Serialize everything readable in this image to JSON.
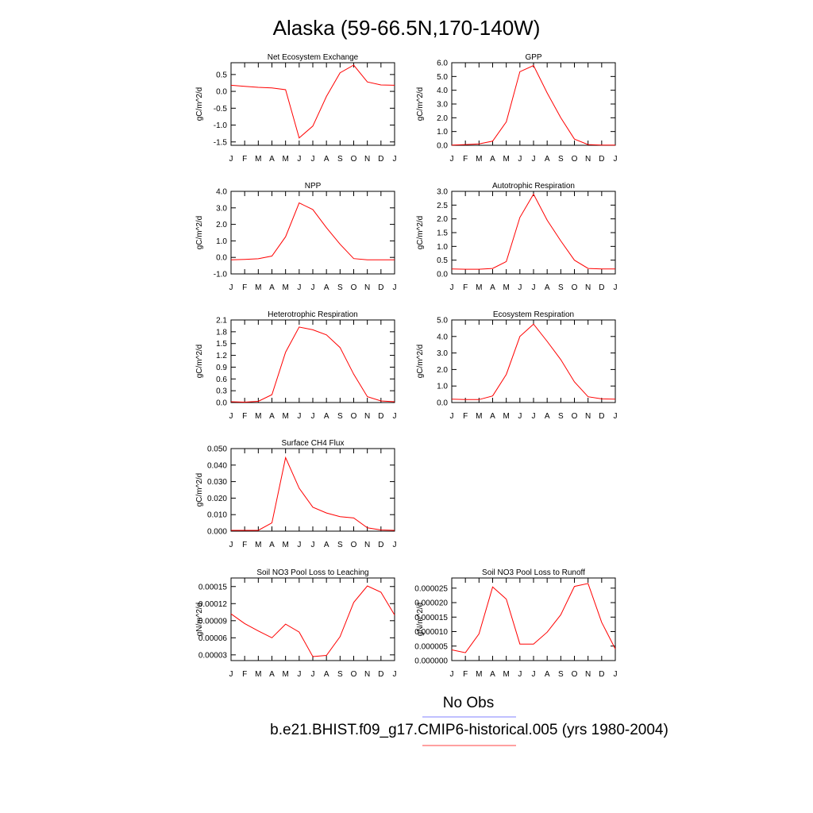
{
  "figure": {
    "title": "Alaska (59-66.5N,170-140W)",
    "legend": [
      {
        "label": "No Obs",
        "color": "#8080ff"
      },
      {
        "label": "b.e21.BHIST.f09_g17.CMIP6-historical.005 (yrs 1980-2004)",
        "color": "#ff4040"
      }
    ]
  },
  "chart_data": [
    {
      "type": "line",
      "title": "Net Ecosystem Exchange",
      "ylabel": "gC/m^2/d",
      "categories": [
        "J",
        "F",
        "M",
        "A",
        "M",
        "J",
        "J",
        "A",
        "S",
        "O",
        "N",
        "D",
        "J"
      ],
      "ylim": [
        -1.6,
        0.85
      ],
      "yticks": [
        -1.5,
        -1.0,
        -0.5,
        0.0,
        0.5
      ],
      "ytick_labels": [
        "-1.5",
        "-1.0",
        "-0.5",
        "0.0",
        "0.5"
      ],
      "series": [
        {
          "color": "#ff0000",
          "values": [
            0.18,
            0.15,
            0.12,
            0.1,
            0.05,
            -1.38,
            -1.03,
            -0.15,
            0.55,
            0.78,
            0.28,
            0.19,
            0.18
          ]
        }
      ]
    },
    {
      "type": "line",
      "title": "GPP",
      "ylabel": "gC/m^2/d",
      "categories": [
        "J",
        "F",
        "M",
        "A",
        "M",
        "J",
        "J",
        "A",
        "S",
        "O",
        "N",
        "D",
        "J"
      ],
      "ylim": [
        0,
        6.0
      ],
      "yticks": [
        0,
        1,
        2,
        3,
        4,
        5,
        6
      ],
      "ytick_labels": [
        "0.0",
        "1.0",
        "2.0",
        "3.0",
        "4.0",
        "5.0",
        "6.0"
      ],
      "series": [
        {
          "color": "#ff0000",
          "values": [
            0.02,
            0.05,
            0.1,
            0.3,
            1.7,
            5.35,
            5.8,
            3.8,
            2.0,
            0.45,
            0.05,
            0.02,
            0.02
          ]
        }
      ]
    },
    {
      "type": "line",
      "title": "NPP",
      "ylabel": "gC/m^2/d",
      "categories": [
        "J",
        "F",
        "M",
        "A",
        "M",
        "J",
        "J",
        "A",
        "S",
        "O",
        "N",
        "D",
        "J"
      ],
      "ylim": [
        -1.0,
        4.0
      ],
      "yticks": [
        -1,
        0,
        1,
        2,
        3,
        4
      ],
      "ytick_labels": [
        "-1.0",
        "0.0",
        "1.0",
        "2.0",
        "3.0",
        "4.0"
      ],
      "series": [
        {
          "color": "#ff0000",
          "values": [
            -0.15,
            -0.12,
            -0.08,
            0.08,
            1.25,
            3.3,
            2.9,
            1.8,
            0.8,
            -0.07,
            -0.15,
            -0.15,
            -0.15
          ]
        }
      ]
    },
    {
      "type": "line",
      "title": "Autotrophic Respiration",
      "ylabel": "gC/m^2/d",
      "categories": [
        "J",
        "F",
        "M",
        "A",
        "M",
        "J",
        "J",
        "A",
        "S",
        "O",
        "N",
        "D",
        "J"
      ],
      "ylim": [
        0,
        3.0
      ],
      "yticks": [
        0,
        0.5,
        1,
        1.5,
        2,
        2.5,
        3
      ],
      "ytick_labels": [
        "0.0",
        "0.5",
        "1.0",
        "1.5",
        "2.0",
        "2.5",
        "3.0"
      ],
      "series": [
        {
          "color": "#ff0000",
          "values": [
            0.18,
            0.17,
            0.17,
            0.2,
            0.45,
            2.05,
            2.9,
            1.95,
            1.2,
            0.5,
            0.2,
            0.18,
            0.18
          ]
        }
      ]
    },
    {
      "type": "line",
      "title": "Heterotrophic Respiration",
      "ylabel": "gC/m^2/d",
      "categories": [
        "J",
        "F",
        "M",
        "A",
        "M",
        "J",
        "J",
        "A",
        "S",
        "O",
        "N",
        "D",
        "J"
      ],
      "ylim": [
        0,
        2.1
      ],
      "yticks": [
        0,
        0.3,
        0.6,
        0.9,
        1.2,
        1.5,
        1.8,
        2.1
      ],
      "ytick_labels": [
        "0.0",
        "0.3",
        "0.6",
        "0.9",
        "1.2",
        "1.5",
        "1.8",
        "2.1"
      ],
      "series": [
        {
          "color": "#ff0000",
          "values": [
            0.02,
            0.01,
            0.03,
            0.2,
            1.28,
            1.92,
            1.85,
            1.72,
            1.4,
            0.72,
            0.15,
            0.04,
            0.02
          ]
        }
      ]
    },
    {
      "type": "line",
      "title": "Ecosystem Respiration",
      "ylabel": "gC/m^2/d",
      "categories": [
        "J",
        "F",
        "M",
        "A",
        "M",
        "J",
        "J",
        "A",
        "S",
        "O",
        "N",
        "D",
        "J"
      ],
      "ylim": [
        0,
        5.0
      ],
      "yticks": [
        0,
        1,
        2,
        3,
        4,
        5
      ],
      "ytick_labels": [
        "0.0",
        "1.0",
        "2.0",
        "3.0",
        "4.0",
        "5.0"
      ],
      "series": [
        {
          "color": "#ff0000",
          "values": [
            0.2,
            0.18,
            0.18,
            0.4,
            1.7,
            4.0,
            4.75,
            3.7,
            2.6,
            1.25,
            0.35,
            0.22,
            0.2
          ]
        }
      ]
    },
    {
      "type": "line",
      "title": "Surface CH4 Flux",
      "ylabel": "gC/m^2/d",
      "categories": [
        "J",
        "F",
        "M",
        "A",
        "M",
        "J",
        "J",
        "A",
        "S",
        "O",
        "N",
        "D",
        "J"
      ],
      "ylim": [
        0,
        0.05
      ],
      "yticks": [
        0,
        0.01,
        0.02,
        0.03,
        0.04,
        0.05
      ],
      "ytick_labels": [
        "0.000",
        "0.010",
        "0.020",
        "0.030",
        "0.040",
        "0.050"
      ],
      "series": [
        {
          "color": "#ff0000",
          "values": [
            0.0005,
            0.0005,
            0.0005,
            0.005,
            0.0445,
            0.026,
            0.0145,
            0.011,
            0.0088,
            0.008,
            0.002,
            0.0007,
            0.0005
          ]
        }
      ]
    },
    {
      "type": "line",
      "title": "Soil NO3 Pool Loss to Leaching",
      "ylabel": "gN/m^2/d",
      "categories": [
        "J",
        "F",
        "M",
        "A",
        "M",
        "J",
        "J",
        "A",
        "S",
        "O",
        "N",
        "D",
        "J"
      ],
      "ylim": [
        2e-05,
        0.000165
      ],
      "yticks": [
        3e-05,
        6e-05,
        9e-05,
        0.00012,
        0.00015
      ],
      "ytick_labels": [
        "0.00003",
        "0.00006",
        "0.00009",
        "0.00012",
        "0.00015"
      ],
      "series": [
        {
          "color": "#ff0000",
          "values": [
            0.000102,
            8.5e-05,
            7.2e-05,
            6e-05,
            8.4e-05,
            7e-05,
            2.7e-05,
            2.9e-05,
            6.2e-05,
            0.000122,
            0.000151,
            0.00014,
            0.0001
          ]
        }
      ]
    },
    {
      "type": "line",
      "title": "Soil NO3 Pool Loss to Runoff",
      "ylabel": "gN/m^2/d",
      "categories": [
        "J",
        "F",
        "M",
        "A",
        "M",
        "J",
        "J",
        "A",
        "S",
        "O",
        "N",
        "D",
        "J"
      ],
      "ylim": [
        0,
        2.85e-05
      ],
      "yticks": [
        0,
        5e-06,
        1e-05,
        1.5e-05,
        2e-05,
        2.5e-05
      ],
      "ytick_labels": [
        "0.000000",
        "0.000005",
        "0.000010",
        "0.000015",
        "0.000020",
        "0.000025"
      ],
      "series": [
        {
          "color": "#ff0000",
          "values": [
            3.7e-06,
            2.7e-06,
            9.2e-06,
            2.54e-05,
            2.12e-05,
            5.7e-06,
            5.7e-06,
            9.8e-06,
            1.58e-05,
            2.56e-05,
            2.66e-05,
            1.32e-05,
            4e-06
          ]
        }
      ]
    }
  ]
}
